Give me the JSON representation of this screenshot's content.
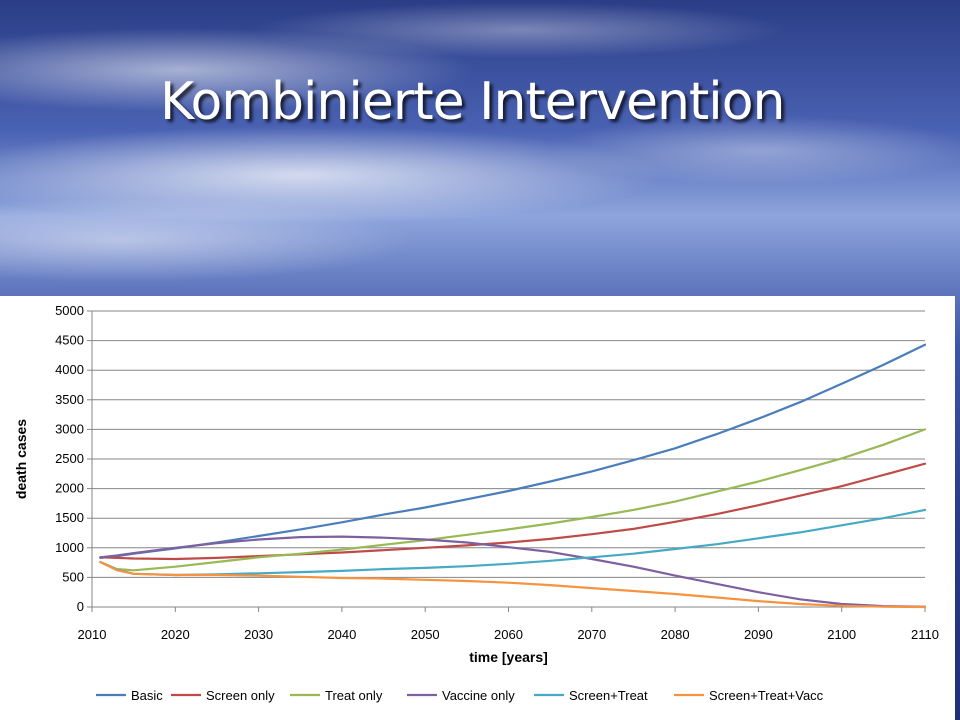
{
  "slide": {
    "title": "Kombinierte Intervention"
  },
  "chart_data": {
    "type": "line",
    "title": "",
    "xlabel": "time [years]",
    "ylabel": "death cases",
    "xlim": [
      2010,
      2110
    ],
    "ylim": [
      0,
      5000
    ],
    "xticks": [
      "2010",
      "2020",
      "2030",
      "2040",
      "2050",
      "2060",
      "2070",
      "2080",
      "2090",
      "2100",
      "2110"
    ],
    "yticks": [
      "0",
      "500",
      "1000",
      "1500",
      "2000",
      "2500",
      "3000",
      "3500",
      "4000",
      "4500",
      "5000"
    ],
    "grid": "horizontal",
    "legend": "bottom",
    "x": [
      2011,
      2013,
      2015,
      2020,
      2025,
      2030,
      2035,
      2040,
      2045,
      2050,
      2055,
      2060,
      2065,
      2070,
      2075,
      2080,
      2085,
      2090,
      2095,
      2100,
      2105,
      2110
    ],
    "series": [
      {
        "name": "Basic",
        "color": "#4a7ebb",
        "values": [
          830,
          860,
          900,
          990,
          1090,
          1200,
          1310,
          1430,
          1560,
          1680,
          1820,
          1960,
          2120,
          2290,
          2480,
          2680,
          2920,
          3180,
          3460,
          3770,
          4090,
          4430
        ]
      },
      {
        "name": "Screen only",
        "color": "#be4b48",
        "values": [
          840,
          830,
          820,
          810,
          830,
          860,
          890,
          920,
          960,
          1000,
          1040,
          1090,
          1150,
          1230,
          1320,
          1440,
          1570,
          1720,
          1880,
          2040,
          2230,
          2420
        ]
      },
      {
        "name": "Treat only",
        "color": "#98b954",
        "values": [
          760,
          640,
          620,
          680,
          760,
          840,
          900,
          970,
          1050,
          1130,
          1220,
          1310,
          1410,
          1520,
          1640,
          1780,
          1950,
          2120,
          2310,
          2510,
          2740,
          3000
        ]
      },
      {
        "name": "Vaccine only",
        "color": "#7d60a0",
        "values": [
          840,
          870,
          910,
          1000,
          1080,
          1140,
          1180,
          1190,
          1170,
          1140,
          1090,
          1010,
          930,
          810,
          680,
          530,
          390,
          250,
          130,
          50,
          15,
          5
        ]
      },
      {
        "name": "Screen+Treat",
        "color": "#46aac5",
        "values": [
          760,
          630,
          560,
          540,
          550,
          570,
          590,
          610,
          640,
          660,
          690,
          730,
          780,
          840,
          900,
          980,
          1060,
          1160,
          1260,
          1380,
          1500,
          1640
        ]
      },
      {
        "name": "Screen+Treat+Vacc",
        "color": "#f69240",
        "values": [
          760,
          620,
          560,
          540,
          540,
          530,
          510,
          490,
          480,
          460,
          440,
          410,
          370,
          320,
          270,
          220,
          160,
          100,
          50,
          20,
          5,
          0
        ]
      }
    ]
  }
}
